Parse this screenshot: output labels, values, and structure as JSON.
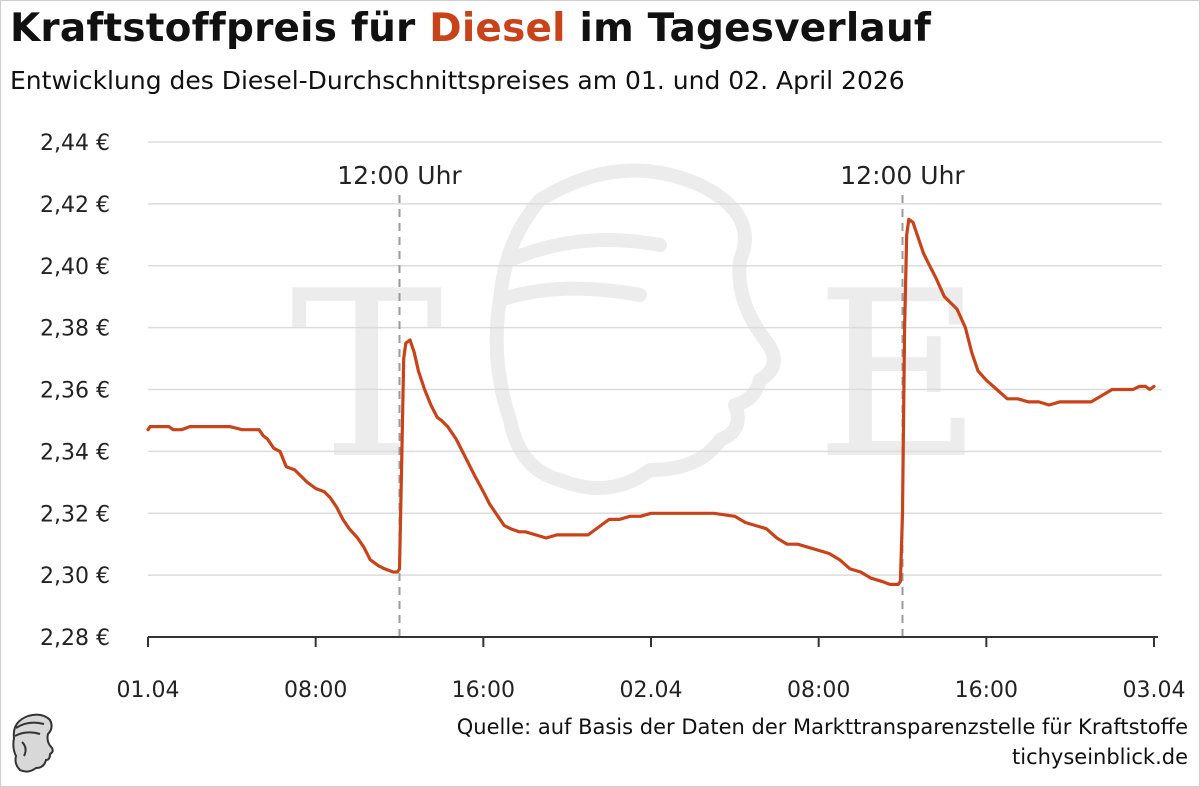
{
  "title": {
    "prefix": "Kraftstoffpreis für ",
    "highlight": "Diesel",
    "suffix": " im Tagesverlauf"
  },
  "subtitle": "Entwicklung des Diesel-Durchschnittspreises am 01. und 02. April 2026",
  "source": {
    "line1": "Quelle: auf Basis der Daten der Markttransparenzstelle für Kraftstoffe",
    "line2": "tichyseinblick.de"
  },
  "watermark": {
    "left": "T",
    "right": "E"
  },
  "colors": {
    "accent": "#c8431a",
    "line": "#c8431a",
    "grid": "#dcdcdc",
    "marker": "#9a9a9a"
  },
  "chart_data": {
    "type": "line",
    "title": "Kraftstoffpreis für Diesel im Tagesverlauf",
    "xlabel": "",
    "ylabel": "",
    "xlim": [
      0,
      48
    ],
    "ylim": [
      2.28,
      2.44
    ],
    "y_ticks": [
      {
        "value": 2.28,
        "label": "2,28 €"
      },
      {
        "value": 2.3,
        "label": "2,30 €"
      },
      {
        "value": 2.32,
        "label": "2,32 €"
      },
      {
        "value": 2.34,
        "label": "2,34 €"
      },
      {
        "value": 2.36,
        "label": "2,36 €"
      },
      {
        "value": 2.38,
        "label": "2,38 €"
      },
      {
        "value": 2.4,
        "label": "2,40 €"
      },
      {
        "value": 2.42,
        "label": "2,42 €"
      },
      {
        "value": 2.44,
        "label": "2,44 €"
      }
    ],
    "x_ticks": [
      {
        "value": 0,
        "label": "01.04"
      },
      {
        "value": 8,
        "label": "08:00"
      },
      {
        "value": 16,
        "label": "16:00"
      },
      {
        "value": 24,
        "label": "02.04"
      },
      {
        "value": 32,
        "label": "08:00"
      },
      {
        "value": 40,
        "label": "16:00"
      },
      {
        "value": 48,
        "label": "03.04"
      }
    ],
    "markers": [
      {
        "x": 12,
        "label": "12:00 Uhr"
      },
      {
        "x": 36,
        "label": "12:00 Uhr"
      }
    ],
    "grid": true,
    "series": [
      {
        "x": [
          0,
          0.1,
          0.4,
          1.0,
          1.2,
          1.6,
          2.0,
          2.3,
          3.0,
          3.6,
          3.9,
          4.5,
          5.0,
          5.3,
          5.5,
          5.7,
          6.0,
          6.3,
          6.6,
          7.0,
          7.3,
          7.6,
          7.8,
          8.0,
          8.4,
          8.7,
          9.0,
          9.3,
          9.6,
          10.0,
          10.3,
          10.6,
          11.0,
          11.3,
          11.7,
          11.9,
          12.0,
          12.1,
          12.2,
          12.3,
          12.5,
          12.7,
          12.9,
          13.2,
          13.5,
          13.8,
          14.0,
          14.3,
          14.7,
          15.0,
          15.3,
          15.6,
          16.0,
          16.3,
          16.6,
          17.0,
          17.3,
          17.7,
          18.0,
          18.5,
          19.0,
          19.5,
          20.0,
          21.0,
          22.0,
          22.5,
          23.0,
          23.5,
          24.0,
          24.5,
          25.0,
          26.0,
          27.0,
          28.0,
          28.5,
          29.0,
          29.5,
          30.0,
          30.5,
          31.0,
          31.5,
          32.0,
          32.5,
          33.0,
          33.5,
          34.0,
          34.5,
          35.0,
          35.4,
          35.8,
          35.9,
          36.0,
          36.1,
          36.2,
          36.3,
          36.5,
          36.7,
          37.0,
          37.3,
          37.6,
          38.0,
          38.3,
          38.6,
          39.0,
          39.3,
          39.6,
          40.0,
          40.5,
          41.0,
          41.5,
          42.0,
          42.5,
          43.0,
          43.5,
          44.0,
          44.5,
          45.0,
          45.5,
          46.0,
          46.5,
          47.0,
          47.3,
          47.6,
          47.8,
          48.0
        ],
        "values": [
          2.347,
          2.348,
          2.348,
          2.348,
          2.347,
          2.347,
          2.348,
          2.348,
          2.348,
          2.348,
          2.348,
          2.347,
          2.347,
          2.347,
          2.345,
          2.344,
          2.341,
          2.34,
          2.335,
          2.334,
          2.332,
          2.33,
          2.329,
          2.328,
          2.327,
          2.325,
          2.322,
          2.318,
          2.315,
          2.312,
          2.309,
          2.305,
          2.303,
          2.302,
          2.301,
          2.301,
          2.302,
          2.335,
          2.37,
          2.375,
          2.376,
          2.372,
          2.366,
          2.36,
          2.355,
          2.351,
          2.35,
          2.348,
          2.344,
          2.34,
          2.336,
          2.332,
          2.327,
          2.323,
          2.32,
          2.316,
          2.315,
          2.314,
          2.314,
          2.313,
          2.312,
          2.313,
          2.313,
          2.313,
          2.318,
          2.318,
          2.319,
          2.319,
          2.32,
          2.32,
          2.32,
          2.32,
          2.32,
          2.319,
          2.317,
          2.316,
          2.315,
          2.312,
          2.31,
          2.31,
          2.309,
          2.308,
          2.307,
          2.305,
          2.302,
          2.301,
          2.299,
          2.298,
          2.297,
          2.297,
          2.298,
          2.32,
          2.38,
          2.41,
          2.415,
          2.414,
          2.41,
          2.404,
          2.4,
          2.396,
          2.39,
          2.388,
          2.386,
          2.38,
          2.372,
          2.366,
          2.363,
          2.36,
          2.357,
          2.357,
          2.356,
          2.356,
          2.355,
          2.356,
          2.356,
          2.356,
          2.356,
          2.358,
          2.36,
          2.36,
          2.36,
          2.361,
          2.361,
          2.36,
          2.361
        ]
      }
    ]
  }
}
